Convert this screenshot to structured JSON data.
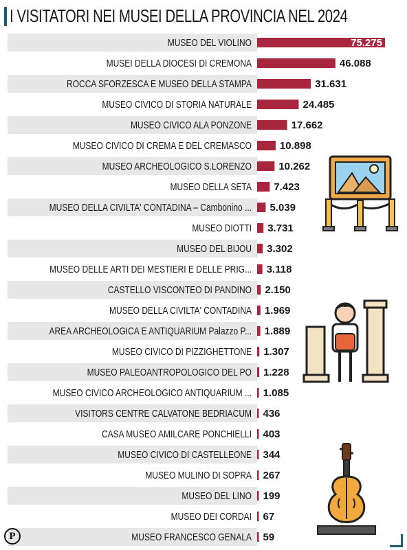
{
  "title": "I VISITATORI NEI MUSEI DELLA PROVINCIA NEL 2024",
  "logo_letter": "P",
  "colors": {
    "bar": "#a8273f",
    "stripe": "#e7e7e7",
    "accent": "#1f5a6e",
    "text": "#1a1a1a"
  },
  "chart_data": {
    "type": "bar",
    "orientation": "horizontal",
    "title": "I VISITATORI NEI MUSEI DELLA PROVINCIA NEL 2024",
    "categories": [
      "MUSEO DEL VIOLINO",
      "MUSEI DELLA DIOCESI DI CREMONA",
      "ROCCA SFORZESCA E MUSEO DELLA STAMPA",
      "MUSEO CIVICO DI STORIA NATURALE",
      "MUSEO CIVICO ALA PONZONE",
      "MUSEO CIVICO DI CREMA E DEL CREMASCO",
      "MUSEO ARCHEOLOGICO S.LORENZO",
      "MUSEO DELLA SETA",
      "MUSEO DELLA CIVILTA' CONTADINA – Cambonino ...",
      "MUSEO DIOTTI",
      "MUSEO DEL BIJOU",
      "MUSEO DELLE ARTI DEI MESTIERI E DELLE PRIG...",
      "CASTELLO VISCONTEO DI PANDINO",
      "MUSEO DELLA CIVILTA' CONTADINA",
      "AREA ARCHEOLOGICA E ANTIQUARIUM Palazzo P...",
      "MUSEO CIVICO DI PIZZIGHETTONE",
      "MUSEO PALEOANTROPOLOGICO DEL PO",
      "MUSEO CIVICO ARCHEOLOGICO ANTIQUARIUM ...",
      "VISITORS CENTRE CALVATONE BEDRIACUM",
      "CASA MUSEO AMILCARE PONCHIELLI",
      "MUSEO CIVICO DI CASTELLEONE",
      "MUSEO MULINO DI SOPRA",
      "MUSEO DEL LINO",
      "MUSEO DEI CORDAI",
      "MUSEO FRANCESCO GENALA"
    ],
    "values": [
      75275,
      46088,
      31631,
      24485,
      17662,
      10898,
      10262,
      7423,
      5039,
      3731,
      3302,
      3118,
      2150,
      1969,
      1889,
      1307,
      1228,
      1085,
      436,
      403,
      344,
      267,
      199,
      67,
      59
    ],
    "labels": [
      "75.275",
      "46.088",
      "31.631",
      "24.485",
      "17.662",
      "10.898",
      "10.262",
      "7.423",
      "5.039",
      "3.731",
      "3.302",
      "3.118",
      "2.150",
      "1.969",
      "1.889",
      "1.307",
      "1.228",
      "1.085",
      "436",
      "403",
      "344",
      "267",
      "199",
      "67",
      "59"
    ],
    "xlim": [
      0,
      75275
    ],
    "grid": false,
    "legend": "none"
  }
}
